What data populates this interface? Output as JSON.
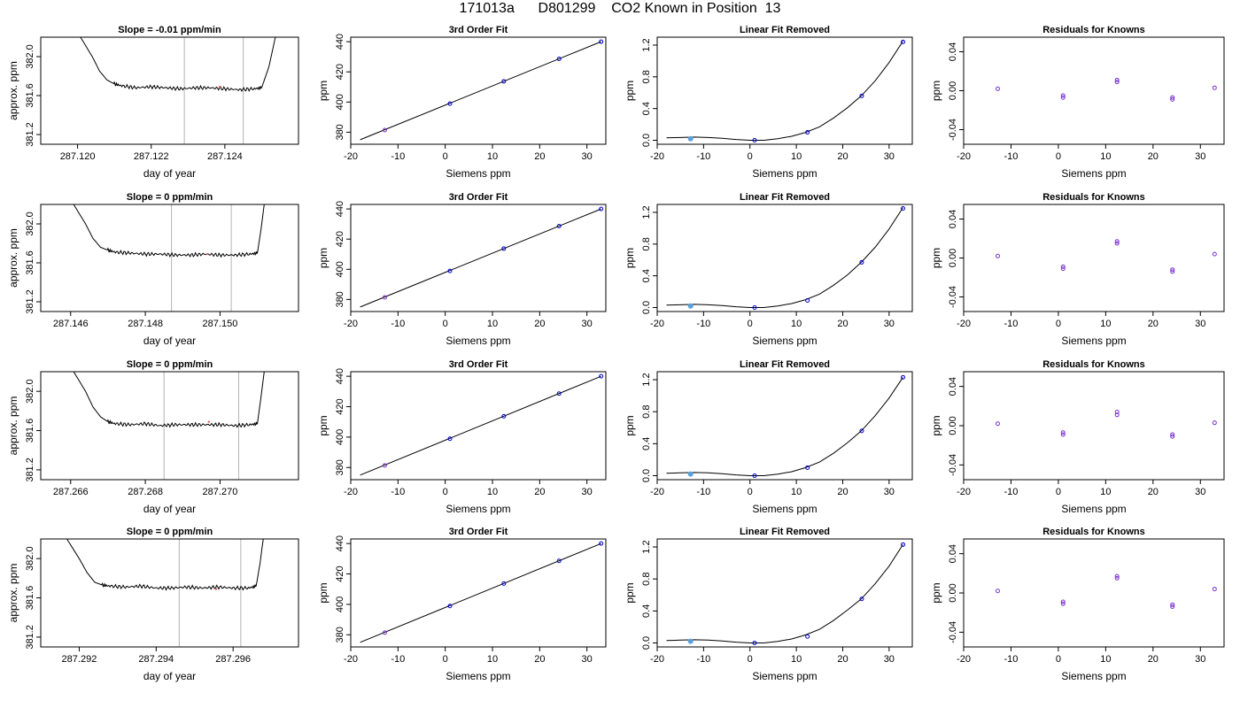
{
  "figure": {
    "title": "171013a      D801299    CO2 Known in Position  13",
    "colors": {
      "axis": "#000000",
      "fit_line": "#000000",
      "marker": "#0000cc",
      "marker_alt": "#5aa0dc",
      "residual_marker": "#7a30d0",
      "vline": "#b4b4b4",
      "highlight": "#e06060"
    }
  },
  "chart_data": [
    {
      "type": "line",
      "row": 1,
      "panel": "trace",
      "title": "Slope =  -0.01  ppm/min",
      "xlabel": "day of year",
      "ylabel": "approx. ppm",
      "xlim": [
        287.119,
        287.126
      ],
      "ylim": [
        381.1,
        382.2
      ],
      "xticks": [
        287.12,
        287.122,
        287.124
      ],
      "xtick_labels": [
        "287.120",
        "287.122",
        "287.124"
      ],
      "yticks": [
        381.2,
        381.6,
        382.0
      ],
      "ytick_labels": [
        "381.2",
        "381.6",
        "382.0"
      ],
      "x": [
        287.12,
        287.1204,
        287.1206,
        287.1208,
        287.121,
        287.1212,
        287.1216,
        287.122,
        287.1224,
        287.1228,
        287.1232,
        287.1236,
        287.124,
        287.1244,
        287.1248,
        287.125,
        287.1252,
        287.1254
      ],
      "y": [
        382.25,
        382.0,
        381.85,
        381.76,
        381.72,
        381.7,
        381.68,
        381.69,
        381.68,
        381.67,
        381.68,
        381.68,
        381.67,
        381.66,
        381.67,
        381.68,
        381.9,
        382.25
      ],
      "vlines": [
        287.1229,
        287.1245
      ]
    },
    {
      "type": "line",
      "row": 1,
      "panel": "fit",
      "title": "3rd Order Fit",
      "xlabel": "Siemens ppm",
      "ylabel": "ppm",
      "xlim": [
        -20,
        34
      ],
      "ylim": [
        372,
        443
      ],
      "xticks": [
        -20,
        -10,
        0,
        10,
        20,
        30
      ],
      "xtick_labels": [
        "-20",
        "-10",
        "0",
        "10",
        "20",
        "30"
      ],
      "yticks": [
        380,
        400,
        420,
        440
      ],
      "ytick_labels": [
        "380",
        "400",
        "420",
        "440"
      ],
      "line_x": [
        -18,
        33
      ],
      "line_y": [
        375,
        440
      ],
      "points_x": [
        -12.8,
        1.0,
        12.4,
        24.1,
        33.0
      ],
      "points_y": [
        381.4,
        398.9,
        413.7,
        428.6,
        440.0
      ]
    },
    {
      "type": "line",
      "row": 1,
      "panel": "detrended",
      "title": "Linear Fit Removed",
      "xlabel": "Siemens ppm",
      "ylabel": "ppm",
      "xlim": [
        -20,
        35
      ],
      "ylim": [
        -0.05,
        1.3
      ],
      "xticks": [
        -20,
        -10,
        0,
        10,
        20,
        30
      ],
      "xtick_labels": [
        "-20",
        "-10",
        "0",
        "10",
        "20",
        "30"
      ],
      "yticks": [
        0.0,
        0.4,
        0.8,
        1.2
      ],
      "ytick_labels": [
        "0.0",
        "0.4",
        "0.8",
        "1.2"
      ],
      "curve_x": [
        -18,
        -15,
        -12,
        -9,
        -6,
        -3,
        0,
        3,
        6,
        9,
        12,
        15,
        18,
        21,
        24,
        27,
        30,
        33
      ],
      "curve_y": [
        0.03,
        0.035,
        0.04,
        0.035,
        0.025,
        0.01,
        0.0,
        0.0,
        0.02,
        0.05,
        0.1,
        0.17,
        0.28,
        0.41,
        0.56,
        0.75,
        0.98,
        1.25
      ],
      "points_x": [
        -12.8,
        1.0,
        12.4,
        24.1,
        33.0
      ],
      "points_y": [
        0.02,
        0.0,
        0.1,
        0.56,
        1.24
      ]
    },
    {
      "type": "scatter",
      "row": 1,
      "panel": "residuals",
      "title": "Residuals for Knowns",
      "xlabel": "Siemens ppm",
      "ylabel": "ppm",
      "xlim": [
        -20,
        35
      ],
      "ylim": [
        -0.055,
        0.055
      ],
      "xticks": [
        -20,
        -10,
        0,
        10,
        20,
        30
      ],
      "xtick_labels": [
        "-20",
        "-10",
        "0",
        "10",
        "20",
        "30"
      ],
      "yticks": [
        -0.04,
        0.0,
        0.04
      ],
      "ytick_labels": [
        "-0.04",
        "0.00",
        "0.04"
      ],
      "points_x": [
        -12.8,
        1.0,
        1.0,
        12.4,
        12.4,
        24.1,
        24.1,
        33.0
      ],
      "points_y": [
        0.002,
        -0.005,
        -0.007,
        0.009,
        0.011,
        -0.007,
        -0.009,
        0.003
      ]
    },
    {
      "type": "line",
      "row": 2,
      "panel": "trace",
      "title": "Slope =  0  ppm/min",
      "xlabel": "day of year",
      "ylabel": "approx. ppm",
      "xlim": [
        287.1452,
        287.1521
      ],
      "ylim": [
        381.1,
        382.2
      ],
      "xticks": [
        287.146,
        287.148,
        287.15
      ],
      "xtick_labels": [
        "287.146",
        "287.148",
        "287.150"
      ],
      "yticks": [
        381.2,
        381.6,
        382.0
      ],
      "ytick_labels": [
        "381.2",
        "381.6",
        "382.0"
      ],
      "x": [
        287.146,
        287.1464,
        287.1466,
        287.1468,
        287.147,
        287.1472,
        287.1476,
        287.148,
        287.1484,
        287.1488,
        287.1492,
        287.1496,
        287.15,
        287.1504,
        287.1508,
        287.151,
        287.1511,
        287.1512
      ],
      "y": [
        382.25,
        382.0,
        381.85,
        381.76,
        381.73,
        381.71,
        381.7,
        381.69,
        381.69,
        381.68,
        381.68,
        381.69,
        381.68,
        381.68,
        381.69,
        381.7,
        381.95,
        382.25
      ],
      "vlines": [
        287.1487,
        287.1503
      ]
    },
    {
      "type": "line",
      "row": 2,
      "panel": "fit",
      "title": "3rd Order Fit",
      "xlabel": "Siemens ppm",
      "ylabel": "ppm",
      "xlim": [
        -20,
        34
      ],
      "ylim": [
        372,
        443
      ],
      "xticks": [
        -20,
        -10,
        0,
        10,
        20,
        30
      ],
      "xtick_labels": [
        "-20",
        "-10",
        "0",
        "10",
        "20",
        "30"
      ],
      "yticks": [
        380,
        400,
        420,
        440
      ],
      "ytick_labels": [
        "380",
        "400",
        "420",
        "440"
      ],
      "line_x": [
        -18,
        33
      ],
      "line_y": [
        375,
        440
      ],
      "points_x": [
        -12.8,
        1.0,
        12.4,
        24.1,
        33.0
      ],
      "points_y": [
        381.4,
        398.9,
        413.7,
        428.6,
        440.0
      ]
    },
    {
      "type": "line",
      "row": 2,
      "panel": "detrended",
      "title": "Linear Fit Removed",
      "xlabel": "Siemens ppm",
      "ylabel": "ppm",
      "xlim": [
        -20,
        35
      ],
      "ylim": [
        -0.05,
        1.3
      ],
      "xticks": [
        -20,
        -10,
        0,
        10,
        20,
        30
      ],
      "xtick_labels": [
        "-20",
        "-10",
        "0",
        "10",
        "20",
        "30"
      ],
      "yticks": [
        0.0,
        0.4,
        0.8,
        1.2
      ],
      "ytick_labels": [
        "0.0",
        "0.4",
        "0.8",
        "1.2"
      ],
      "curve_x": [
        -18,
        -15,
        -12,
        -9,
        -6,
        -3,
        0,
        3,
        6,
        9,
        12,
        15,
        18,
        21,
        24,
        27,
        30,
        33
      ],
      "curve_y": [
        0.03,
        0.035,
        0.04,
        0.035,
        0.025,
        0.01,
        0.0,
        0.0,
        0.02,
        0.05,
        0.1,
        0.17,
        0.28,
        0.41,
        0.57,
        0.76,
        0.99,
        1.26
      ],
      "points_x": [
        -12.8,
        1.0,
        12.4,
        24.1,
        33.0
      ],
      "points_y": [
        0.02,
        0.0,
        0.09,
        0.57,
        1.25
      ]
    },
    {
      "type": "scatter",
      "row": 2,
      "panel": "residuals",
      "title": "Residuals for Knowns",
      "xlabel": "Siemens ppm",
      "ylabel": "ppm",
      "xlim": [
        -20,
        35
      ],
      "ylim": [
        -0.055,
        0.055
      ],
      "xticks": [
        -20,
        -10,
        0,
        10,
        20,
        30
      ],
      "xtick_labels": [
        "-20",
        "-10",
        "0",
        "10",
        "20",
        "30"
      ],
      "yticks": [
        -0.04,
        0.0,
        0.04
      ],
      "ytick_labels": [
        "-0.04",
        "0.00",
        "0.04"
      ],
      "points_x": [
        -12.8,
        1.0,
        1.0,
        12.4,
        12.4,
        24.1,
        24.1,
        33.0
      ],
      "points_y": [
        0.002,
        -0.009,
        -0.011,
        0.015,
        0.017,
        -0.012,
        -0.014,
        0.004
      ]
    },
    {
      "type": "line",
      "row": 3,
      "panel": "trace",
      "title": "Slope =  0  ppm/min",
      "xlabel": "day of year",
      "ylabel": "approx. ppm",
      "xlim": [
        287.2652,
        287.2721
      ],
      "ylim": [
        381.1,
        382.2
      ],
      "xticks": [
        287.266,
        287.268,
        287.27
      ],
      "xtick_labels": [
        "287.266",
        "287.268",
        "287.270"
      ],
      "yticks": [
        381.2,
        381.6,
        382.0
      ],
      "ytick_labels": [
        "381.2",
        "381.6",
        "382.0"
      ],
      "x": [
        287.266,
        287.2664,
        287.2666,
        287.2668,
        287.267,
        287.2672,
        287.2676,
        287.268,
        287.2684,
        287.2688,
        287.2692,
        287.2696,
        287.27,
        287.2704,
        287.2708,
        287.271,
        287.2711,
        287.2712
      ],
      "y": [
        382.25,
        382.0,
        381.84,
        381.74,
        381.69,
        381.67,
        381.66,
        381.67,
        381.65,
        381.66,
        381.66,
        381.66,
        381.66,
        381.65,
        381.66,
        381.67,
        381.95,
        382.25
      ],
      "vlines": [
        287.2685,
        287.2705
      ]
    },
    {
      "type": "line",
      "row": 3,
      "panel": "fit",
      "title": "3rd Order Fit",
      "xlabel": "Siemens ppm",
      "ylabel": "ppm",
      "xlim": [
        -20,
        34
      ],
      "ylim": [
        372,
        443
      ],
      "xticks": [
        -20,
        -10,
        0,
        10,
        20,
        30
      ],
      "xtick_labels": [
        "-20",
        "-10",
        "0",
        "10",
        "20",
        "30"
      ],
      "yticks": [
        380,
        400,
        420,
        440
      ],
      "ytick_labels": [
        "380",
        "400",
        "420",
        "440"
      ],
      "line_x": [
        -18,
        33
      ],
      "line_y": [
        375,
        440
      ],
      "points_x": [
        -12.8,
        1.0,
        12.4,
        24.1,
        33.0
      ],
      "points_y": [
        381.4,
        398.9,
        413.7,
        428.6,
        440.0
      ]
    },
    {
      "type": "line",
      "row": 3,
      "panel": "detrended",
      "title": "Linear Fit Removed",
      "xlabel": "Siemens ppm",
      "ylabel": "ppm",
      "xlim": [
        -20,
        35
      ],
      "ylim": [
        -0.05,
        1.3
      ],
      "xticks": [
        -20,
        -10,
        0,
        10,
        20,
        30
      ],
      "xtick_labels": [
        "-20",
        "-10",
        "0",
        "10",
        "20",
        "30"
      ],
      "yticks": [
        0.0,
        0.4,
        0.8,
        1.2
      ],
      "ytick_labels": [
        "0.0",
        "0.4",
        "0.8",
        "1.2"
      ],
      "curve_x": [
        -18,
        -15,
        -12,
        -9,
        -6,
        -3,
        0,
        3,
        6,
        9,
        12,
        15,
        18,
        21,
        24,
        27,
        30,
        33
      ],
      "curve_y": [
        0.03,
        0.035,
        0.04,
        0.035,
        0.025,
        0.01,
        0.0,
        0.0,
        0.02,
        0.05,
        0.1,
        0.17,
        0.28,
        0.41,
        0.56,
        0.75,
        0.97,
        1.23
      ],
      "points_x": [
        -12.8,
        1.0,
        12.4,
        24.1,
        33.0
      ],
      "points_y": [
        0.02,
        0.0,
        0.1,
        0.56,
        1.23
      ]
    },
    {
      "type": "scatter",
      "row": 3,
      "panel": "residuals",
      "title": "Residuals for Knowns",
      "xlabel": "Siemens ppm",
      "ylabel": "ppm",
      "xlim": [
        -20,
        35
      ],
      "ylim": [
        -0.055,
        0.055
      ],
      "xticks": [
        -20,
        -10,
        0,
        10,
        20,
        30
      ],
      "xtick_labels": [
        "-20",
        "-10",
        "0",
        "10",
        "20",
        "30"
      ],
      "yticks": [
        -0.04,
        0.0,
        0.04
      ],
      "ytick_labels": [
        "-0.04",
        "0.00",
        "0.04"
      ],
      "points_x": [
        -12.8,
        1.0,
        1.0,
        12.4,
        12.4,
        24.1,
        24.1,
        33.0
      ],
      "points_y": [
        0.002,
        -0.007,
        -0.009,
        0.011,
        0.014,
        -0.009,
        -0.011,
        0.003
      ]
    },
    {
      "type": "line",
      "row": 4,
      "panel": "trace",
      "title": "Slope =  0  ppm/min",
      "xlabel": "day of year",
      "ylabel": "approx. ppm",
      "xlim": [
        287.291,
        287.2977
      ],
      "ylim": [
        381.1,
        382.2
      ],
      "xticks": [
        287.292,
        287.294,
        287.296
      ],
      "xtick_labels": [
        "287.292",
        "287.294",
        "287.296"
      ],
      "yticks": [
        381.2,
        381.6,
        382.0
      ],
      "ytick_labels": [
        "381.2",
        "381.6",
        "382.0"
      ],
      "x": [
        287.2916,
        287.292,
        287.2922,
        287.2924,
        287.2926,
        287.2928,
        287.2932,
        287.2936,
        287.294,
        287.2944,
        287.2948,
        287.2952,
        287.2956,
        287.296,
        287.2964,
        287.2966,
        287.2967,
        287.2968
      ],
      "y": [
        382.25,
        382.0,
        381.86,
        381.76,
        381.73,
        381.72,
        381.71,
        381.72,
        381.7,
        381.7,
        381.71,
        381.7,
        381.71,
        381.7,
        381.7,
        381.72,
        381.95,
        382.25
      ],
      "vlines": [
        287.2946,
        287.2962
      ]
    },
    {
      "type": "line",
      "row": 4,
      "panel": "fit",
      "title": "3rd Order Fit",
      "xlabel": "Siemens ppm",
      "ylabel": "ppm",
      "xlim": [
        -20,
        34
      ],
      "ylim": [
        372,
        443
      ],
      "xticks": [
        -20,
        -10,
        0,
        10,
        20,
        30
      ],
      "xtick_labels": [
        "-20",
        "-10",
        "0",
        "10",
        "20",
        "30"
      ],
      "yticks": [
        380,
        400,
        420,
        440
      ],
      "ytick_labels": [
        "380",
        "400",
        "420",
        "440"
      ],
      "line_x": [
        -18,
        33
      ],
      "line_y": [
        375,
        440
      ],
      "points_x": [
        -12.8,
        1.0,
        12.4,
        24.1,
        33.0
      ],
      "points_y": [
        381.4,
        398.9,
        413.7,
        428.6,
        440.0
      ]
    },
    {
      "type": "line",
      "row": 4,
      "panel": "detrended",
      "title": "Linear Fit Removed",
      "xlabel": "Siemens ppm",
      "ylabel": "ppm",
      "xlim": [
        -20,
        35
      ],
      "ylim": [
        -0.05,
        1.3
      ],
      "xticks": [
        -20,
        -10,
        0,
        10,
        20,
        30
      ],
      "xtick_labels": [
        "-20",
        "-10",
        "0",
        "10",
        "20",
        "30"
      ],
      "yticks": [
        0.0,
        0.4,
        0.8,
        1.2
      ],
      "ytick_labels": [
        "0.0",
        "0.4",
        "0.8",
        "1.2"
      ],
      "curve_x": [
        -18,
        -15,
        -12,
        -9,
        -6,
        -3,
        0,
        3,
        6,
        9,
        12,
        15,
        18,
        21,
        24,
        27,
        30,
        33
      ],
      "curve_y": [
        0.03,
        0.035,
        0.04,
        0.035,
        0.025,
        0.01,
        0.0,
        0.0,
        0.02,
        0.05,
        0.1,
        0.17,
        0.28,
        0.41,
        0.55,
        0.74,
        0.96,
        1.23
      ],
      "points_x": [
        -12.8,
        1.0,
        12.4,
        24.1,
        33.0
      ],
      "points_y": [
        0.02,
        0.0,
        0.08,
        0.55,
        1.23
      ]
    },
    {
      "type": "scatter",
      "row": 4,
      "panel": "residuals",
      "title": "Residuals for Knowns",
      "xlabel": "Siemens ppm",
      "ylabel": "ppm",
      "xlim": [
        -20,
        35
      ],
      "ylim": [
        -0.055,
        0.055
      ],
      "xticks": [
        -20,
        -10,
        0,
        10,
        20,
        30
      ],
      "xtick_labels": [
        "-20",
        "-10",
        "0",
        "10",
        "20",
        "30"
      ],
      "yticks": [
        -0.04,
        0.0,
        0.04
      ],
      "ytick_labels": [
        "-0.04",
        "0.00",
        "0.04"
      ],
      "points_x": [
        -12.8,
        1.0,
        1.0,
        12.4,
        12.4,
        24.1,
        24.1,
        33.0
      ],
      "points_y": [
        0.002,
        -0.009,
        -0.011,
        0.015,
        0.017,
        -0.012,
        -0.014,
        0.004
      ]
    }
  ]
}
